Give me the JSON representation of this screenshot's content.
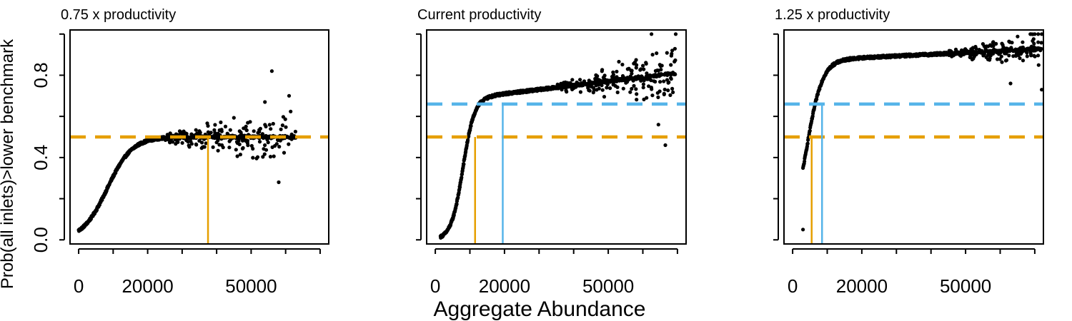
{
  "figure": {
    "xlabel": "Aggregate Abundance",
    "ylabel": "Prob(all inlets)>lower benchmark"
  },
  "colors": {
    "points": "#000000",
    "orange": "#E69F00",
    "blue": "#56B4E9"
  },
  "chart_data": [
    {
      "type": "scatter",
      "title": "0.75 x productivity",
      "xlim": [
        -2500,
        72500
      ],
      "ylim": [
        -0.02,
        1.02
      ],
      "xticks": [
        0,
        10000,
        20000,
        30000,
        40000,
        50000,
        60000,
        70000
      ],
      "xticklabels": [
        "0",
        "",
        "20000",
        "",
        "",
        "50000",
        "",
        ""
      ],
      "yticks": [
        0.0,
        0.2,
        0.4,
        0.6,
        0.8,
        1.0
      ],
      "yticklabels": [
        "0.0",
        "",
        "0.4",
        "",
        "0.8",
        ""
      ],
      "show_y_ticklabels": true,
      "hlines": [
        {
          "y": 0.5,
          "color": "orange",
          "style": "dashed"
        }
      ],
      "vlines": [
        {
          "x": 37500,
          "y_top": 0.5,
          "color": "orange"
        }
      ],
      "curve": {
        "x_start": 0,
        "x_end": 63000,
        "x0": 8300,
        "scale": 3600,
        "plateau": 0.5,
        "dx": 80
      },
      "scatter_cloud": {
        "x_min": 25000,
        "x_max": 63000,
        "spread_start": 0.02,
        "spread_end": 0.2,
        "n": 190
      },
      "outliers": [
        {
          "x": 56000,
          "y": 0.82
        },
        {
          "x": 58000,
          "y": 0.28
        },
        {
          "x": 61000,
          "y": 0.7
        },
        {
          "x": 54000,
          "y": 0.67
        }
      ]
    },
    {
      "type": "scatter",
      "title": "Current productivity",
      "xlim": [
        -2500,
        72500
      ],
      "ylim": [
        -0.02,
        1.02
      ],
      "xticks": [
        0,
        10000,
        20000,
        30000,
        40000,
        50000,
        60000,
        70000
      ],
      "xticklabels": [
        "0",
        "",
        "20000",
        "",
        "",
        "50000",
        "",
        ""
      ],
      "yticks": [
        0.0,
        0.2,
        0.4,
        0.6,
        0.8,
        1.0
      ],
      "yticklabels": [
        "0.0",
        "",
        "0.4",
        "",
        "0.8",
        ""
      ],
      "show_y_ticklabels": false,
      "hlines": [
        {
          "y": 0.5,
          "color": "orange",
          "style": "dashed"
        },
        {
          "y": 0.66,
          "color": "blue",
          "style": "dashed"
        }
      ],
      "vlines": [
        {
          "x": 11500,
          "y_top": 0.5,
          "color": "orange"
        },
        {
          "x": 19500,
          "y_top": 0.66,
          "color": "blue"
        }
      ],
      "curve": {
        "x_start": 1500,
        "x_end": 69500,
        "x0": 8000,
        "scale": 1700,
        "plateau": 0.7,
        "dx": 70
      },
      "trend_slope_per_10000": 0.02,
      "scatter_cloud": {
        "x_min": 35000,
        "x_max": 69500,
        "spread_start": 0.02,
        "spread_end": 0.16,
        "n": 200
      },
      "outliers": [
        {
          "x": 62500,
          "y": 1.0
        },
        {
          "x": 69500,
          "y": 1.0
        },
        {
          "x": 66500,
          "y": 0.46
        },
        {
          "x": 64500,
          "y": 0.56
        },
        {
          "x": 68500,
          "y": 0.92
        }
      ]
    },
    {
      "type": "scatter",
      "title": "1.25 x productivity",
      "xlim": [
        -2500,
        72500
      ],
      "ylim": [
        -0.02,
        1.02
      ],
      "xticks": [
        0,
        10000,
        20000,
        30000,
        40000,
        50000,
        60000,
        70000
      ],
      "xticklabels": [
        "0",
        "",
        "20000",
        "",
        "",
        "50000",
        "",
        ""
      ],
      "yticks": [
        0.0,
        0.2,
        0.4,
        0.6,
        0.8,
        1.0
      ],
      "yticklabels": [
        "0.0",
        "",
        "0.4",
        "",
        "0.8",
        ""
      ],
      "show_y_ticklabels": false,
      "hlines": [
        {
          "y": 0.5,
          "color": "orange",
          "style": "dashed"
        },
        {
          "y": 0.66,
          "color": "blue",
          "style": "dashed"
        }
      ],
      "vlines": [
        {
          "x": 5500,
          "y_top": 0.5,
          "color": "orange"
        },
        {
          "x": 8500,
          "y_top": 0.66,
          "color": "blue"
        }
      ],
      "curve": {
        "x_start": 3000,
        "x_end": 72000,
        "x0": 4000,
        "scale": 2300,
        "plateau": 0.88,
        "dx": 80
      },
      "trend_slope_per_10000": 0.008,
      "scatter_cloud": {
        "x_min": 45000,
        "x_max": 72000,
        "spread_start": 0.02,
        "spread_end": 0.1,
        "n": 170
      },
      "outliers": [
        {
          "x": 3000,
          "y": 0.05
        },
        {
          "x": 63000,
          "y": 0.76
        },
        {
          "x": 72000,
          "y": 0.73
        },
        {
          "x": 70000,
          "y": 1.0
        },
        {
          "x": 71000,
          "y": 1.0
        },
        {
          "x": 72000,
          "y": 1.0
        }
      ]
    }
  ]
}
